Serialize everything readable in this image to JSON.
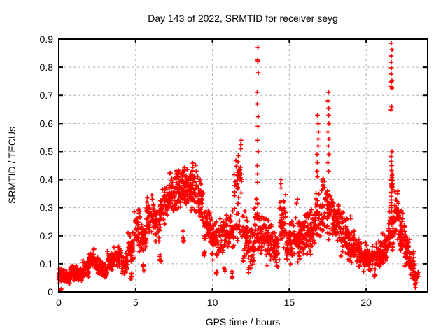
{
  "chart_data": {
    "type": "scatter",
    "title": "Day 143 of 2022, SRMTID for receiver seyg",
    "xlabel": "GPS time / hours",
    "ylabel": "SRMTID / TECUs",
    "xlim": [
      0,
      24
    ],
    "ylim": [
      0,
      0.9
    ],
    "xticks": [
      0,
      5,
      10,
      15,
      20
    ],
    "xtick_labels": [
      "0",
      "5",
      "10",
      "15",
      "20"
    ],
    "yticks": [
      0,
      0.1,
      0.2,
      0.3,
      0.4,
      0.5,
      0.6,
      0.7,
      0.8,
      0.9
    ],
    "ytick_labels": [
      "0",
      "0.1",
      "0.2",
      "0.3",
      "0.4",
      "0.5",
      "0.6",
      "0.7",
      "0.8",
      "0.9"
    ],
    "grid": true,
    "legend": "none",
    "marker": "plus",
    "point_color": "#ff0000",
    "grid_color": "#b0b0b0",
    "frame_color": "#000000",
    "background_color": "#ffffff",
    "seed": 1143,
    "bands": [
      [
        0.0,
        0.35,
        0.03,
        0.09,
        50
      ],
      [
        0.35,
        0.75,
        0.02,
        0.075,
        50
      ],
      [
        0.75,
        1.15,
        0.04,
        0.1,
        50
      ],
      [
        1.15,
        1.55,
        0.03,
        0.09,
        50
      ],
      [
        1.55,
        1.95,
        0.05,
        0.12,
        45
      ],
      [
        1.95,
        2.35,
        0.08,
        0.16,
        40
      ],
      [
        2.35,
        2.75,
        0.06,
        0.13,
        40
      ],
      [
        2.75,
        3.15,
        0.04,
        0.11,
        40
      ],
      [
        3.15,
        3.6,
        0.07,
        0.15,
        45
      ],
      [
        3.6,
        4.1,
        0.08,
        0.17,
        45
      ],
      [
        4.1,
        4.5,
        0.06,
        0.14,
        40
      ],
      [
        4.5,
        4.9,
        0.1,
        0.22,
        40
      ],
      [
        4.65,
        4.75,
        0.04,
        0.09,
        6
      ],
      [
        4.9,
        5.3,
        0.14,
        0.3,
        40
      ],
      [
        5.3,
        5.7,
        0.14,
        0.26,
        40
      ],
      [
        5.45,
        5.55,
        0.07,
        0.12,
        6
      ],
      [
        5.7,
        6.2,
        0.2,
        0.33,
        45
      ],
      [
        6.2,
        6.6,
        0.17,
        0.3,
        40
      ],
      [
        6.55,
        6.65,
        0.09,
        0.14,
        6
      ],
      [
        6.6,
        7.1,
        0.23,
        0.38,
        45
      ],
      [
        7.1,
        7.6,
        0.27,
        0.43,
        50
      ],
      [
        7.6,
        8.1,
        0.28,
        0.45,
        55
      ],
      [
        8.05,
        8.15,
        0.15,
        0.24,
        7
      ],
      [
        8.1,
        8.6,
        0.3,
        0.45,
        55
      ],
      [
        8.6,
        9.1,
        0.27,
        0.47,
        50
      ],
      [
        9.1,
        9.45,
        0.22,
        0.42,
        35
      ],
      [
        9.4,
        9.5,
        0.1,
        0.2,
        6
      ],
      [
        9.45,
        9.95,
        0.16,
        0.31,
        45
      ],
      [
        9.95,
        10.45,
        0.1,
        0.27,
        45
      ],
      [
        10.2,
        10.3,
        0.05,
        0.09,
        5
      ],
      [
        10.45,
        10.95,
        0.12,
        0.3,
        45
      ],
      [
        10.75,
        10.85,
        0.05,
        0.1,
        5
      ],
      [
        10.95,
        11.4,
        0.13,
        0.31,
        40
      ],
      [
        11.25,
        11.35,
        0.04,
        0.09,
        5
      ],
      [
        11.4,
        11.9,
        0.28,
        0.5,
        40
      ],
      [
        11.55,
        11.8,
        0.17,
        0.3,
        15
      ],
      [
        11.9,
        12.3,
        0.08,
        0.32,
        40
      ],
      [
        12.3,
        12.7,
        0.05,
        0.24,
        40
      ],
      [
        12.7,
        13.1,
        0.12,
        0.35,
        40
      ],
      [
        13.1,
        13.5,
        0.12,
        0.3,
        40
      ],
      [
        13.5,
        13.95,
        0.08,
        0.26,
        40
      ],
      [
        13.95,
        14.35,
        0.06,
        0.22,
        40
      ],
      [
        14.35,
        14.8,
        0.12,
        0.36,
        45
      ],
      [
        14.8,
        15.25,
        0.09,
        0.26,
        45
      ],
      [
        15.25,
        15.7,
        0.1,
        0.28,
        45
      ],
      [
        15.7,
        16.15,
        0.11,
        0.3,
        45
      ],
      [
        16.15,
        16.6,
        0.12,
        0.3,
        45
      ],
      [
        16.6,
        17.05,
        0.15,
        0.4,
        40
      ],
      [
        17.05,
        17.5,
        0.17,
        0.42,
        40
      ],
      [
        17.5,
        17.9,
        0.16,
        0.4,
        40
      ],
      [
        17.9,
        18.35,
        0.14,
        0.33,
        45
      ],
      [
        18.35,
        18.8,
        0.12,
        0.3,
        45
      ],
      [
        18.8,
        19.25,
        0.09,
        0.24,
        45
      ],
      [
        19.25,
        19.7,
        0.08,
        0.2,
        45
      ],
      [
        19.7,
        20.15,
        0.07,
        0.18,
        45
      ],
      [
        20.15,
        20.6,
        0.07,
        0.17,
        45
      ],
      [
        20.5,
        20.6,
        0.04,
        0.07,
        4
      ],
      [
        20.6,
        21.05,
        0.08,
        0.19,
        45
      ],
      [
        21.05,
        21.45,
        0.09,
        0.22,
        40
      ],
      [
        21.45,
        21.8,
        0.13,
        0.3,
        35
      ],
      [
        21.6,
        21.75,
        0.3,
        0.45,
        12
      ],
      [
        21.8,
        22.15,
        0.18,
        0.38,
        35
      ],
      [
        22.15,
        22.5,
        0.13,
        0.3,
        40
      ],
      [
        22.5,
        22.85,
        0.08,
        0.24,
        45
      ],
      [
        22.85,
        23.15,
        0.04,
        0.15,
        35
      ],
      [
        23.15,
        23.4,
        0.02,
        0.09,
        18
      ]
    ],
    "columns": [
      {
        "t": 12.95,
        "values": [
          0.87,
          0.825,
          0.82,
          0.78,
          0.71,
          0.67,
          0.625,
          0.59,
          0.54,
          0.5,
          0.45,
          0.42,
          0.39
        ]
      },
      {
        "t": 16.85,
        "values": [
          0.63,
          0.6,
          0.57,
          0.545,
          0.52,
          0.49,
          0.46,
          0.43,
          0.41
        ]
      },
      {
        "t": 17.55,
        "values": [
          0.71,
          0.68,
          0.655,
          0.63,
          0.6,
          0.57,
          0.545,
          0.52,
          0.49,
          0.46,
          0.43
        ]
      },
      {
        "t": 21.65,
        "values": [
          0.885,
          0.862,
          0.84,
          0.818,
          0.798,
          0.775,
          0.752,
          0.748,
          0.73,
          0.725,
          0.66,
          0.648,
          0.5,
          0.483,
          0.465,
          0.45,
          0.432,
          0.415,
          0.4,
          0.385,
          0.37,
          0.355,
          0.34,
          0.328,
          0.318,
          0.308,
          0.3,
          0.285,
          0.265,
          0.24,
          0.215
        ]
      },
      {
        "t": 11.85,
        "values": [
          0.54,
          0.525,
          0.51
        ]
      },
      {
        "t": 14.45,
        "values": [
          0.4,
          0.385,
          0.37
        ]
      },
      {
        "t": 15.5,
        "values": [
          0.33,
          0.315
        ]
      },
      {
        "t": 5.75,
        "values": [
          0.335,
          0.32
        ]
      },
      {
        "t": 6.1,
        "values": [
          0.345,
          0.33
        ]
      },
      {
        "t": 19.0,
        "values": [
          0.27,
          0.26
        ]
      }
    ],
    "outliers": [
      [
        0.08,
        0.006
      ],
      [
        0.12,
        0.004
      ],
      [
        0.17,
        0.01
      ],
      [
        23.2,
        0.015
      ]
    ]
  }
}
